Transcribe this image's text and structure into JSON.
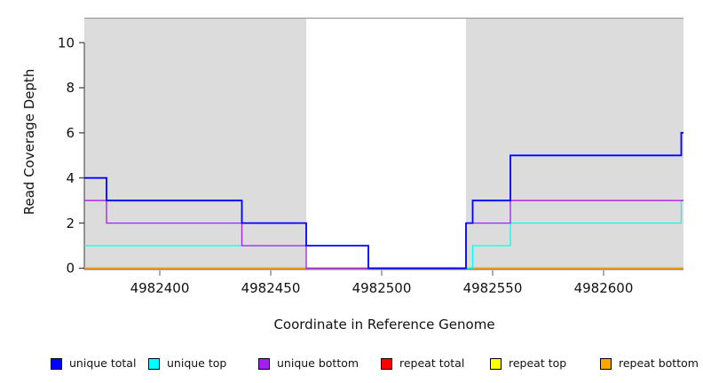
{
  "figure": {
    "x_axis_title": "Coordinate in Reference Genome",
    "y_axis_title": "Read Coverage Depth"
  },
  "legend": {
    "items": [
      {
        "label": "unique total",
        "color": "#0000FF"
      },
      {
        "label": "unique top",
        "color": "#00FFFF"
      },
      {
        "label": "unique bottom",
        "color": "#A020F0"
      },
      {
        "label": "repeat total",
        "color": "#FF0000"
      },
      {
        "label": "repeat top",
        "color": "#FFFF00"
      },
      {
        "label": "repeat bottom",
        "color": "#FFA500"
      }
    ]
  },
  "chart_data": {
    "type": "line",
    "step": true,
    "xlabel": "Coordinate in Reference Genome",
    "ylabel": "Read Coverage Depth",
    "x_ticks": [
      4982400,
      4982450,
      4982500,
      4982550,
      4982600
    ],
    "y_ticks": [
      0,
      2,
      4,
      6,
      8,
      10
    ],
    "xlim": [
      4982366,
      4982636
    ],
    "ylim": [
      0,
      11.26
    ],
    "grid": false,
    "legend_position": "bottom",
    "shade_color": "#DCDCDC",
    "region_border_color": "#9C9C9C",
    "shaded_regions": [
      {
        "x0": 4982366,
        "x1": 4982466
      },
      {
        "x0": 4982538,
        "x1": 4982636
      }
    ],
    "unshaded_gap": {
      "x0": 4982466,
      "x1": 4982538
    },
    "series": [
      {
        "name": "repeat total",
        "color": "#FF0000",
        "width": 1.2,
        "points": [
          [
            4982366,
            0
          ],
          [
            4982636,
            0
          ]
        ]
      },
      {
        "name": "repeat top",
        "color": "#FFFF00",
        "width": 1.2,
        "points": [
          [
            4982366,
            0
          ],
          [
            4982636,
            0
          ]
        ]
      },
      {
        "name": "repeat bottom",
        "color": "#FFA500",
        "width": 1.7,
        "points": [
          [
            4982366,
            0
          ],
          [
            4982636,
            0
          ]
        ]
      },
      {
        "name": "unique top",
        "color": "#00FFFF",
        "width": 1.3,
        "points": [
          [
            4982366,
            1
          ],
          [
            4982494,
            1
          ],
          [
            4982494,
            0
          ],
          [
            4982541,
            0
          ],
          [
            4982541,
            1
          ],
          [
            4982558,
            1
          ],
          [
            4982558,
            2
          ],
          [
            4982635,
            2
          ],
          [
            4982635,
            3
          ],
          [
            4982636,
            3
          ]
        ]
      },
      {
        "name": "unique bottom",
        "color": "#A020F0",
        "width": 1.3,
        "points": [
          [
            4982366,
            3
          ],
          [
            4982376,
            3
          ],
          [
            4982376,
            2
          ],
          [
            4982437,
            2
          ],
          [
            4982437,
            1
          ],
          [
            4982466,
            1
          ],
          [
            4982466,
            0
          ],
          [
            4982538,
            0
          ],
          [
            4982538,
            2
          ],
          [
            4982558,
            2
          ],
          [
            4982558,
            3
          ],
          [
            4982636,
            3
          ]
        ]
      },
      {
        "name": "unique total",
        "color": "#0000FF",
        "width": 1.8,
        "points": [
          [
            4982366,
            4
          ],
          [
            4982376,
            4
          ],
          [
            4982376,
            3
          ],
          [
            4982437,
            3
          ],
          [
            4982437,
            2
          ],
          [
            4982466,
            2
          ],
          [
            4982466,
            1
          ],
          [
            4982494,
            1
          ],
          [
            4982494,
            0
          ],
          [
            4982538,
            0
          ],
          [
            4982538,
            2
          ],
          [
            4982541,
            2
          ],
          [
            4982541,
            3
          ],
          [
            4982558,
            3
          ],
          [
            4982558,
            5
          ],
          [
            4982635,
            5
          ],
          [
            4982635,
            6
          ],
          [
            4982636,
            6
          ]
        ]
      }
    ]
  }
}
